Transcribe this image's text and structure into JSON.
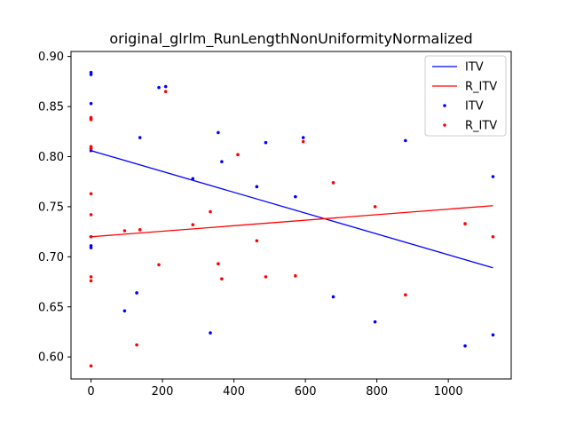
{
  "chart_data": {
    "type": "scatter",
    "title": "original_glrlm_RunLengthNonUniformityNormalized",
    "xlabel": "",
    "ylabel": "",
    "xlim": [
      -56,
      1176
    ],
    "ylim": [
      0.578,
      0.905
    ],
    "x_ticks": [
      0,
      200,
      400,
      600,
      800,
      1000
    ],
    "x_tick_labels": [
      "0",
      "200",
      "400",
      "600",
      "800",
      "1000"
    ],
    "y_ticks": [
      0.6,
      0.65,
      0.7,
      0.75,
      0.8,
      0.85,
      0.9
    ],
    "y_tick_labels": [
      "0.60",
      "0.65",
      "0.70",
      "0.75",
      "0.80",
      "0.85",
      "0.90"
    ],
    "grid": false,
    "legend_position": "top-right",
    "colors": {
      "ITV": "#0000ff",
      "R_ITV": "#ff0000"
    },
    "legend": [
      {
        "label": "ITV",
        "kind": "line",
        "color": "#0000ff"
      },
      {
        "label": "R_ITV",
        "kind": "line",
        "color": "#ff0000"
      },
      {
        "label": "ITV",
        "kind": "marker",
        "color": "#0000ff"
      },
      {
        "label": "R_ITV",
        "kind": "marker",
        "color": "#ff0000"
      }
    ],
    "fit_lines": [
      {
        "series": "ITV",
        "color": "#0000ff",
        "x": [
          0,
          1125
        ],
        "y": [
          0.806,
          0.689
        ]
      },
      {
        "series": "R_ITV",
        "color": "#ff0000",
        "x": [
          0,
          1125
        ],
        "y": [
          0.72,
          0.751
        ]
      }
    ],
    "series": [
      {
        "name": "ITV",
        "color": "#0000ff",
        "points": [
          [
            0,
            0.884
          ],
          [
            0,
            0.882
          ],
          [
            0,
            0.853
          ],
          [
            0,
            0.838
          ],
          [
            0,
            0.808
          ],
          [
            0,
            0.806
          ],
          [
            0,
            0.72
          ],
          [
            0,
            0.711
          ],
          [
            0,
            0.709
          ],
          [
            94,
            0.646
          ],
          [
            128,
            0.664
          ],
          [
            137,
            0.819
          ],
          [
            190,
            0.869
          ],
          [
            209,
            0.87
          ],
          [
            285,
            0.778
          ],
          [
            334,
            0.624
          ],
          [
            356,
            0.824
          ],
          [
            366,
            0.795
          ],
          [
            464,
            0.77
          ],
          [
            489,
            0.814
          ],
          [
            572,
            0.76
          ],
          [
            594,
            0.819
          ],
          [
            678,
            0.66
          ],
          [
            795,
            0.635
          ],
          [
            880,
            0.816
          ],
          [
            1047,
            0.611
          ],
          [
            1125,
            0.622
          ],
          [
            1125,
            0.78
          ]
        ]
      },
      {
        "name": "R_ITV",
        "color": "#ff0000",
        "points": [
          [
            0,
            0.839
          ],
          [
            0,
            0.837
          ],
          [
            0,
            0.81
          ],
          [
            0,
            0.808
          ],
          [
            0,
            0.763
          ],
          [
            0,
            0.742
          ],
          [
            0,
            0.72
          ],
          [
            0,
            0.68
          ],
          [
            0,
            0.676
          ],
          [
            0,
            0.591
          ],
          [
            94,
            0.726
          ],
          [
            128,
            0.612
          ],
          [
            137,
            0.727
          ],
          [
            190,
            0.692
          ],
          [
            209,
            0.865
          ],
          [
            285,
            0.732
          ],
          [
            334,
            0.745
          ],
          [
            356,
            0.693
          ],
          [
            366,
            0.678
          ],
          [
            411,
            0.802
          ],
          [
            464,
            0.716
          ],
          [
            489,
            0.68
          ],
          [
            572,
            0.681
          ],
          [
            594,
            0.815
          ],
          [
            678,
            0.774
          ],
          [
            795,
            0.75
          ],
          [
            880,
            0.662
          ],
          [
            1047,
            0.733
          ],
          [
            1125,
            0.72
          ]
        ]
      }
    ]
  }
}
